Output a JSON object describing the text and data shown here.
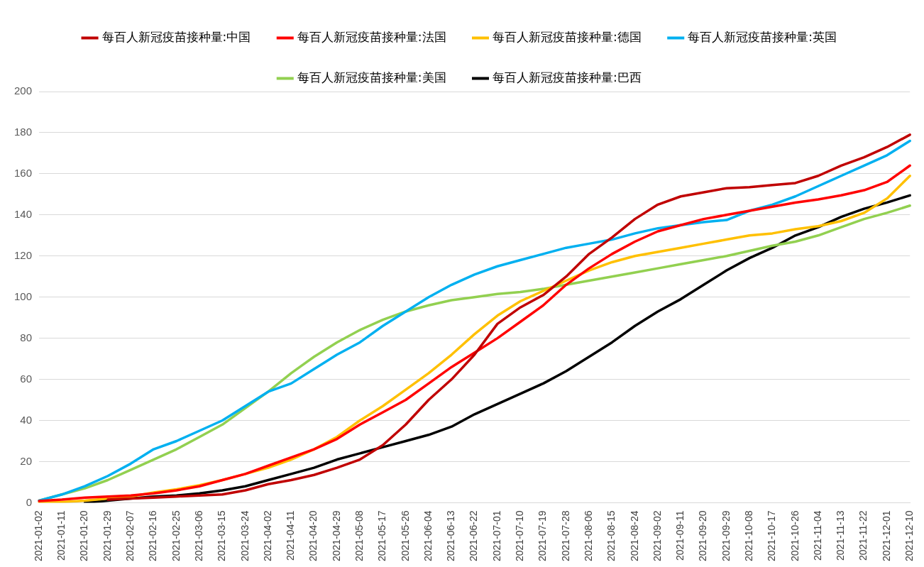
{
  "chart_data": {
    "type": "line",
    "legend": "top",
    "grid": "y",
    "marker": "none",
    "line_style": "solid",
    "categories": [
      "2021-01-02",
      "2021-01-11",
      "2021-01-20",
      "2021-01-29",
      "2021-02-07",
      "2021-02-16",
      "2021-02-25",
      "2021-03-06",
      "2021-03-15",
      "2021-03-24",
      "2021-04-02",
      "2021-04-11",
      "2021-04-20",
      "2021-04-29",
      "2021-05-08",
      "2021-05-17",
      "2021-05-26",
      "2021-06-04",
      "2021-06-13",
      "2021-06-22",
      "2021-07-01",
      "2021-07-10",
      "2021-07-19",
      "2021-07-28",
      "2021-08-06",
      "2021-08-15",
      "2021-08-24",
      "2021-09-02",
      "2021-09-11",
      "2021-09-20",
      "2021-09-29",
      "2021-10-08",
      "2021-10-17",
      "2021-10-26",
      "2021-11-04",
      "2021-11-13",
      "2021-11-22",
      "2021-12-01",
      "2021-12-10"
    ],
    "ylim": [
      0,
      200
    ],
    "yticks": [
      0,
      20,
      40,
      60,
      80,
      100,
      120,
      140,
      160,
      180,
      200
    ],
    "series": [
      {
        "name": "每百人新冠疫苗接种量:中国",
        "color": "#c00000",
        "values": [
          null,
          null,
          null,
          1.5,
          2,
          2.5,
          3,
          3.5,
          4,
          6,
          9,
          11,
          13.5,
          17,
          21,
          28,
          38,
          50,
          60,
          72,
          87,
          95,
          101,
          110,
          121,
          129,
          138,
          145,
          149,
          151,
          153,
          153.5,
          154.5,
          155.5,
          159,
          164,
          168,
          173,
          179
        ]
      },
      {
        "name": "每百人新冠疫苗接种量:法国",
        "color": "#ff0000",
        "values": [
          0.8,
          1.5,
          2.5,
          3,
          3.5,
          4.5,
          6,
          8,
          11,
          14,
          18,
          22,
          26,
          31,
          38,
          44,
          50,
          58,
          66,
          73,
          80,
          88,
          96,
          106,
          114,
          121,
          127,
          132,
          135,
          138,
          140,
          142,
          144,
          146,
          147.5,
          149.5,
          152,
          156,
          164
        ]
      },
      {
        "name": "每百人新冠疫苗接种量:德国",
        "color": "#ffc000",
        "values": [
          0,
          0.3,
          1,
          2,
          3,
          5,
          6.5,
          8.5,
          11,
          14,
          17,
          21,
          26,
          32,
          40,
          47,
          55,
          63,
          72,
          82,
          91,
          98,
          103,
          108,
          113,
          117,
          120,
          122,
          124,
          126,
          128,
          130,
          131,
          133,
          134.5,
          137,
          141,
          148,
          159
        ]
      },
      {
        "name": "每百人新冠疫苗接种量:英国",
        "color": "#00b0f0",
        "values": [
          1,
          4,
          8,
          13,
          19,
          26,
          30,
          35,
          40,
          47,
          54,
          58,
          65,
          72,
          78,
          86,
          93,
          100,
          106,
          111,
          115,
          118,
          121,
          124,
          126,
          128,
          131,
          133.5,
          135,
          136.5,
          137.5,
          142,
          145,
          149,
          154,
          159,
          164,
          169,
          176
        ]
      },
      {
        "name": "每百人新冠疫苗接种量:美国",
        "color": "#92d050",
        "values": [
          1,
          4,
          7,
          11,
          16,
          21,
          26,
          32,
          38,
          46,
          54,
          63,
          71,
          78,
          84,
          89,
          93,
          96,
          98.5,
          100,
          101.5,
          102.5,
          104,
          106,
          108,
          110,
          112,
          114,
          116,
          118,
          120,
          122.5,
          125,
          127,
          130,
          134,
          138,
          141,
          144.5
        ]
      },
      {
        "name": "每百人新冠疫苗接种量:巴西",
        "color": "#000000",
        "values": [
          null,
          null,
          0,
          1,
          2,
          3,
          3.5,
          4.5,
          6,
          8,
          11,
          14,
          17,
          21,
          24,
          27,
          30,
          33,
          37,
          43,
          48,
          53,
          58,
          64,
          71,
          78,
          86,
          93,
          99,
          106,
          113,
          119,
          124,
          130,
          134,
          139,
          143,
          146,
          149.5
        ]
      }
    ]
  }
}
